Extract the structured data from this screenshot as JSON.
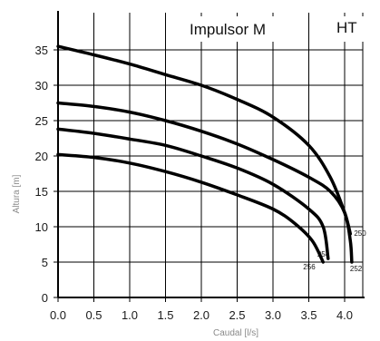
{
  "chart_data": {
    "type": "line",
    "title": "Impulsor M",
    "subtitle": "HT",
    "xlabel": "Caudal [l/s]",
    "ylabel": "Altura [m]",
    "xlim": [
      0,
      4.25
    ],
    "ylim": [
      0,
      38
    ],
    "x_ticks": [
      0,
      0.5,
      1,
      1.5,
      2,
      2.5,
      3,
      3.5,
      4
    ],
    "x_tick_labels": [
      "0.0",
      "0.5",
      "1.0",
      "1.5",
      "2.0",
      "2.5",
      "3.0",
      "3.5",
      "4.0"
    ],
    "y_ticks": [
      0,
      5,
      10,
      15,
      20,
      25,
      30,
      35
    ],
    "y_tick_labels": [
      "0",
      "5",
      "10",
      "15",
      "20",
      "25",
      "30",
      "35"
    ],
    "grid": true,
    "series": [
      {
        "name": "250",
        "points": [
          [
            0,
            35.5
          ],
          [
            0.5,
            34.3
          ],
          [
            1.0,
            33.0
          ],
          [
            1.5,
            31.5
          ],
          [
            2.0,
            30.0
          ],
          [
            2.5,
            28.0
          ],
          [
            3.0,
            25.5
          ],
          [
            3.5,
            21.5
          ],
          [
            3.8,
            17.0
          ],
          [
            4.0,
            12.0
          ],
          [
            4.08,
            9.0
          ]
        ]
      },
      {
        "name": "252",
        "points": [
          [
            0,
            27.5
          ],
          [
            0.5,
            27.0
          ],
          [
            1.0,
            26.2
          ],
          [
            1.5,
            25.0
          ],
          [
            2.0,
            23.5
          ],
          [
            2.5,
            21.7
          ],
          [
            3.0,
            19.5
          ],
          [
            3.5,
            17.0
          ],
          [
            3.8,
            15.0
          ],
          [
            4.0,
            12.0
          ],
          [
            4.08,
            8.0
          ],
          [
            4.1,
            5.0
          ]
        ]
      },
      {
        "name": "254",
        "points": [
          [
            0,
            23.8
          ],
          [
            0.5,
            23.2
          ],
          [
            1.0,
            22.4
          ],
          [
            1.5,
            21.5
          ],
          [
            2.0,
            20.0
          ],
          [
            2.5,
            18.3
          ],
          [
            3.0,
            16.0
          ],
          [
            3.5,
            12.5
          ],
          [
            3.7,
            10.0
          ],
          [
            3.77,
            5.5
          ]
        ]
      },
      {
        "name": "256",
        "points": [
          [
            0,
            20.2
          ],
          [
            0.5,
            19.8
          ],
          [
            1.0,
            19.0
          ],
          [
            1.5,
            17.8
          ],
          [
            2.0,
            16.3
          ],
          [
            2.5,
            14.5
          ],
          [
            3.0,
            12.5
          ],
          [
            3.3,
            10.5
          ],
          [
            3.55,
            8.0
          ],
          [
            3.7,
            5.0
          ]
        ]
      }
    ]
  }
}
